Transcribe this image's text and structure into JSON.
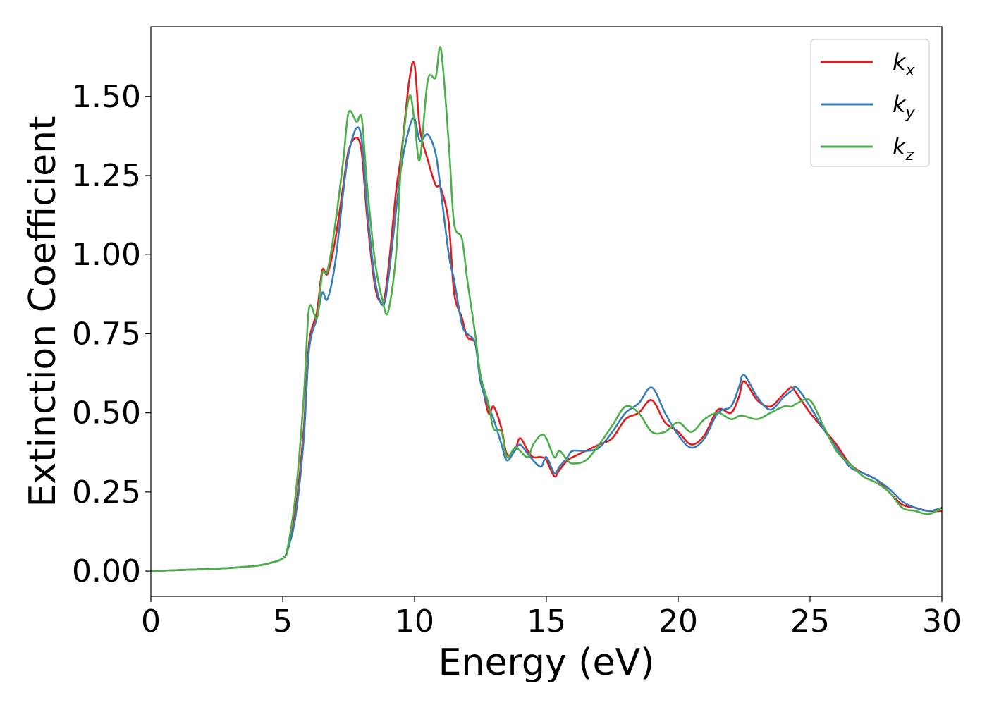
{
  "chart_data": {
    "type": "line",
    "title": "",
    "xlabel": "Energy (eV)",
    "ylabel": "Extinction Coefficient",
    "xlim": [
      0,
      30
    ],
    "ylim": [
      -0.08,
      1.72
    ],
    "xticks": [
      0,
      5,
      10,
      15,
      20,
      25,
      30
    ],
    "yticks": [
      0.0,
      0.25,
      0.5,
      0.75,
      1.0,
      1.25,
      1.5
    ],
    "ytick_labels": [
      "0.00",
      "0.25",
      "0.50",
      "0.75",
      "1.00",
      "1.25",
      "1.50"
    ],
    "grid": false,
    "legend": "top-right",
    "x": [
      0,
      1,
      2,
      3,
      4,
      4.5,
      5,
      5.2,
      5.5,
      5.8,
      6,
      6.3,
      6.5,
      6.7,
      7,
      7.3,
      7.5,
      7.8,
      8,
      8.2,
      8.5,
      8.8,
      9,
      9.3,
      9.5,
      9.8,
      10,
      10.2,
      10.5,
      10.8,
      11,
      11.3,
      11.5,
      11.8,
      12,
      12.3,
      12.5,
      12.8,
      13,
      13.3,
      13.5,
      13.8,
      14,
      14.3,
      14.5,
      14.8,
      15,
      15.3,
      15.5,
      15.8,
      16,
      16.5,
      17,
      17.5,
      18,
      18.5,
      19,
      19.5,
      20,
      20.5,
      21,
      21.5,
      22,
      22.3,
      22.5,
      23,
      23.5,
      24,
      24.3,
      24.5,
      25,
      25.5,
      26,
      26.5,
      27,
      27.5,
      28,
      28.5,
      29,
      29.5,
      30
    ],
    "series": [
      {
        "name": "k",
        "subscript": "x",
        "color": "#e41a1c",
        "values": [
          0.0,
          0.003,
          0.006,
          0.01,
          0.017,
          0.025,
          0.04,
          0.07,
          0.2,
          0.45,
          0.72,
          0.82,
          0.95,
          0.94,
          1.05,
          1.22,
          1.33,
          1.37,
          1.32,
          1.12,
          0.9,
          0.85,
          0.95,
          1.2,
          1.32,
          1.55,
          1.6,
          1.4,
          1.3,
          1.22,
          1.21,
          1.1,
          0.88,
          0.8,
          0.74,
          0.72,
          0.62,
          0.5,
          0.52,
          0.45,
          0.37,
          0.38,
          0.42,
          0.38,
          0.36,
          0.36,
          0.35,
          0.3,
          0.32,
          0.35,
          0.36,
          0.38,
          0.4,
          0.42,
          0.48,
          0.5,
          0.54,
          0.47,
          0.44,
          0.4,
          0.43,
          0.51,
          0.5,
          0.55,
          0.6,
          0.54,
          0.52,
          0.56,
          0.58,
          0.56,
          0.5,
          0.45,
          0.4,
          0.34,
          0.31,
          0.29,
          0.25,
          0.21,
          0.2,
          0.19,
          0.19
        ]
      },
      {
        "name": "k",
        "subscript": "y",
        "color": "#377eb8",
        "values": [
          0.0,
          0.003,
          0.006,
          0.01,
          0.017,
          0.025,
          0.04,
          0.07,
          0.18,
          0.42,
          0.7,
          0.8,
          0.88,
          0.86,
          0.98,
          1.2,
          1.32,
          1.4,
          1.36,
          1.15,
          0.92,
          0.84,
          0.92,
          1.14,
          1.28,
          1.4,
          1.43,
          1.36,
          1.38,
          1.32,
          1.2,
          1.0,
          0.92,
          0.78,
          0.75,
          0.72,
          0.6,
          0.52,
          0.48,
          0.4,
          0.35,
          0.38,
          0.4,
          0.37,
          0.35,
          0.33,
          0.36,
          0.31,
          0.33,
          0.36,
          0.38,
          0.38,
          0.39,
          0.44,
          0.5,
          0.53,
          0.58,
          0.5,
          0.43,
          0.39,
          0.42,
          0.5,
          0.52,
          0.58,
          0.62,
          0.55,
          0.51,
          0.55,
          0.57,
          0.58,
          0.52,
          0.45,
          0.39,
          0.33,
          0.31,
          0.29,
          0.26,
          0.22,
          0.2,
          0.19,
          0.2
        ]
      },
      {
        "name": "k",
        "subscript": "z",
        "color": "#4daf4a",
        "values": [
          0.0,
          0.003,
          0.006,
          0.01,
          0.017,
          0.025,
          0.04,
          0.08,
          0.25,
          0.55,
          0.83,
          0.8,
          0.94,
          0.95,
          1.1,
          1.3,
          1.45,
          1.42,
          1.43,
          1.22,
          0.98,
          0.85,
          0.82,
          1.0,
          1.3,
          1.5,
          1.42,
          1.3,
          1.55,
          1.56,
          1.65,
          1.35,
          1.1,
          1.05,
          0.92,
          0.75,
          0.62,
          0.53,
          0.45,
          0.44,
          0.36,
          0.39,
          0.38,
          0.36,
          0.4,
          0.43,
          0.42,
          0.36,
          0.38,
          0.35,
          0.34,
          0.35,
          0.4,
          0.46,
          0.52,
          0.5,
          0.44,
          0.44,
          0.47,
          0.44,
          0.48,
          0.5,
          0.48,
          0.49,
          0.49,
          0.48,
          0.5,
          0.52,
          0.52,
          0.53,
          0.54,
          0.46,
          0.38,
          0.34,
          0.3,
          0.28,
          0.25,
          0.2,
          0.19,
          0.18,
          0.2
        ]
      }
    ]
  }
}
